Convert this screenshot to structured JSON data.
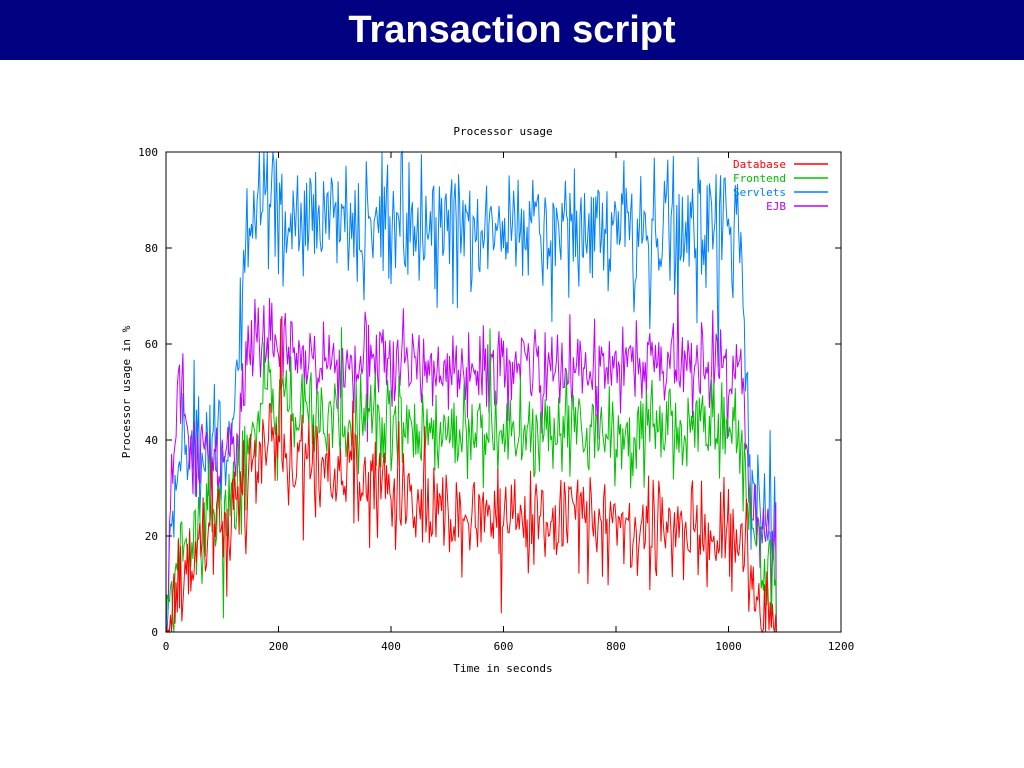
{
  "slide": {
    "title": "Transaction script"
  },
  "chart_data": {
    "type": "line",
    "title": "Processor usage",
    "xlabel": "Time in seconds",
    "ylabel": "Processor usage in %",
    "xlim": [
      0,
      1200
    ],
    "ylim": [
      0,
      100
    ],
    "xticks": [
      0,
      200,
      400,
      600,
      800,
      1000,
      1200
    ],
    "yticks": [
      0,
      20,
      40,
      60,
      80,
      100
    ],
    "grid": false,
    "legend_position": "top-right",
    "series": [
      {
        "name": "Database",
        "color": "#ff0000",
        "x": [
          0,
          10,
          20,
          40,
          60,
          80,
          100,
          120,
          140,
          160,
          180,
          200,
          220,
          240,
          260,
          280,
          300,
          350,
          400,
          450,
          500,
          550,
          600,
          650,
          700,
          750,
          800,
          850,
          900,
          950,
          1000,
          1020,
          1040,
          1060,
          1085
        ],
        "y": [
          0,
          3,
          8,
          14,
          18,
          20,
          22,
          24,
          30,
          38,
          40,
          38,
          37,
          36,
          34,
          33,
          32,
          31,
          30,
          27,
          26,
          26,
          25,
          24,
          24,
          23,
          22,
          22,
          21,
          20,
          20,
          20,
          12,
          6,
          3
        ]
      },
      {
        "name": "Frontend",
        "color": "#00c000",
        "x": [
          0,
          10,
          20,
          40,
          60,
          80,
          100,
          120,
          140,
          160,
          180,
          200,
          220,
          240,
          260,
          280,
          300,
          350,
          400,
          450,
          500,
          550,
          600,
          650,
          700,
          750,
          800,
          850,
          900,
          950,
          1000,
          1020,
          1040,
          1060,
          1085
        ],
        "y": [
          0,
          8,
          15,
          20,
          22,
          24,
          25,
          27,
          35,
          45,
          48,
          48,
          47,
          46,
          45,
          44,
          44,
          43,
          43,
          42,
          42,
          41,
          41,
          41,
          41,
          42,
          41,
          42,
          43,
          43,
          42,
          42,
          22,
          16,
          10
        ]
      },
      {
        "name": "Servlets",
        "color": "#0080ff",
        "x": [
          0,
          10,
          20,
          40,
          60,
          80,
          100,
          120,
          140,
          160,
          180,
          200,
          220,
          240,
          260,
          280,
          300,
          350,
          400,
          450,
          500,
          550,
          600,
          650,
          700,
          750,
          800,
          850,
          900,
          950,
          1000,
          1020,
          1040,
          1060,
          1085
        ],
        "y": [
          0,
          20,
          35,
          38,
          40,
          40,
          40,
          42,
          75,
          88,
          88,
          87,
          86,
          86,
          86,
          86,
          85,
          85,
          85,
          85,
          84,
          84,
          84,
          84,
          84,
          84,
          84,
          84,
          84,
          84,
          84,
          84,
          28,
          24,
          20
        ]
      },
      {
        "name": "EJB",
        "color": "#c000ff",
        "x": [
          0,
          10,
          20,
          40,
          60,
          80,
          100,
          120,
          140,
          160,
          180,
          200,
          220,
          240,
          260,
          280,
          300,
          350,
          400,
          450,
          500,
          550,
          600,
          650,
          700,
          750,
          800,
          850,
          900,
          950,
          1000,
          1020,
          1040,
          1060,
          1085
        ],
        "y": [
          0,
          30,
          50,
          38,
          36,
          35,
          35,
          36,
          55,
          62,
          60,
          59,
          58,
          58,
          57,
          57,
          57,
          57,
          56,
          55,
          55,
          55,
          55,
          55,
          55,
          55,
          55,
          55,
          55,
          55,
          55,
          55,
          28,
          22,
          18
        ]
      }
    ]
  }
}
